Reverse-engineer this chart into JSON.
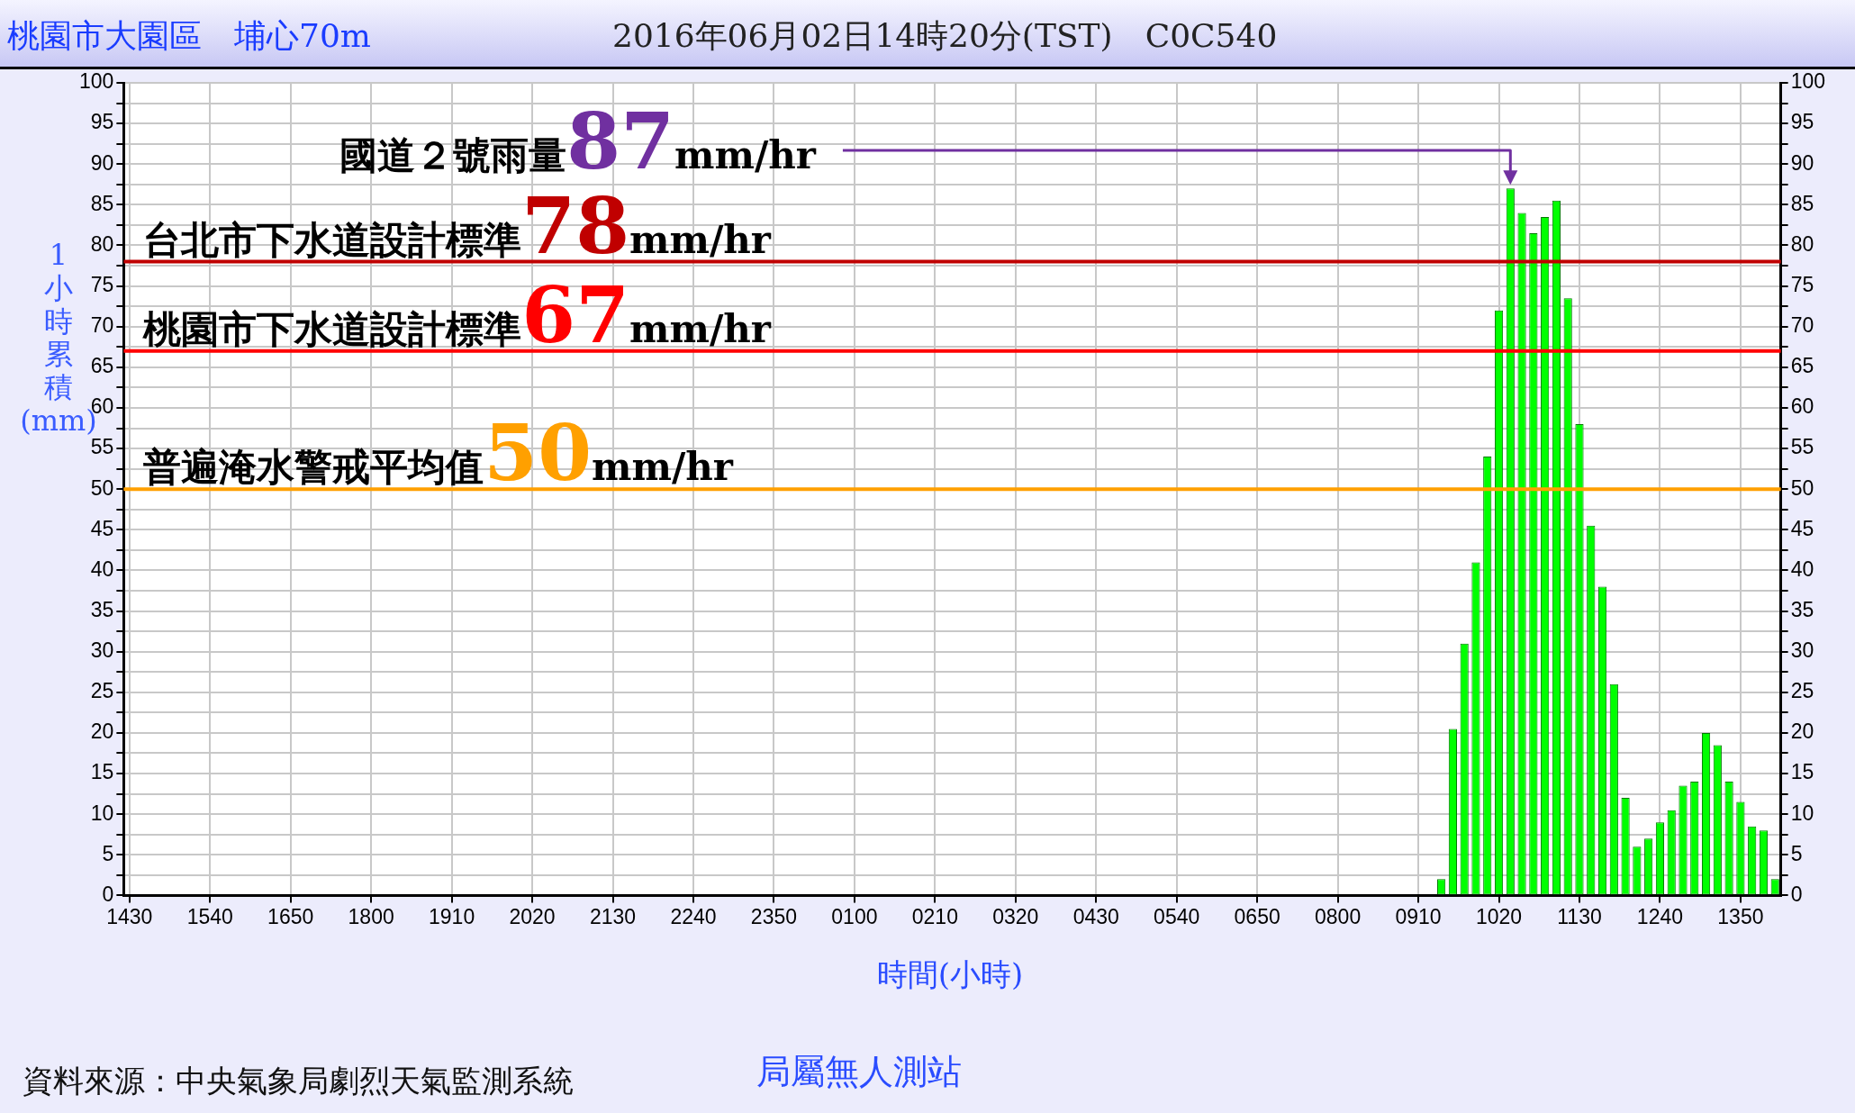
{
  "chart_data": {
    "type": "bar",
    "title": "桃園市大園區　埔心70m",
    "subtitle": "2016年06月02日14時20分(TST)　C0C540",
    "xlabel": "時間(小時)",
    "ylabel": "1小時累積(mm)",
    "categories": [
      "1430",
      null,
      null,
      null,
      null,
      null,
      null,
      "1540",
      null,
      null,
      null,
      null,
      null,
      null,
      "1650",
      null,
      null,
      null,
      null,
      null,
      null,
      "1800",
      null,
      null,
      null,
      null,
      null,
      null,
      "1910",
      null,
      null,
      null,
      null,
      null,
      null,
      "2020",
      null,
      null,
      null,
      null,
      null,
      null,
      "2130",
      null,
      null,
      null,
      null,
      null,
      null,
      "2240",
      null,
      null,
      null,
      null,
      null,
      null,
      "2350",
      null,
      null,
      null,
      null,
      null,
      null,
      "0100",
      null,
      null,
      null,
      null,
      null,
      null,
      "0210",
      null,
      null,
      null,
      null,
      null,
      null,
      "0320",
      null,
      null,
      null,
      null,
      null,
      null,
      "0430",
      null,
      null,
      null,
      null,
      null,
      null,
      "0540",
      null,
      null,
      null,
      null,
      null,
      null,
      "0650",
      null,
      null,
      null,
      null,
      null,
      null,
      "0800",
      null,
      null,
      null,
      null,
      null,
      null,
      "0910",
      null,
      null,
      null,
      null,
      null,
      null,
      "1020",
      null,
      null,
      null,
      null,
      null,
      null,
      "1130",
      null,
      null,
      null,
      null,
      null,
      null,
      "1240",
      null,
      null,
      null,
      null,
      null,
      null,
      "1350",
      null,
      null,
      null
    ],
    "values": [
      0,
      0,
      0,
      0,
      0,
      0,
      0,
      0,
      0,
      0,
      0,
      0,
      0,
      0,
      0,
      0,
      0,
      0,
      0,
      0,
      0,
      0,
      0,
      0,
      0,
      0,
      0,
      0,
      0,
      0,
      0,
      0,
      0,
      0,
      0,
      0,
      0,
      0,
      0,
      0,
      0,
      0,
      0,
      0,
      0,
      0,
      0,
      0,
      0,
      0,
      0,
      0,
      0,
      0,
      0,
      0,
      0,
      0,
      0,
      0,
      0,
      0,
      0,
      0,
      0,
      0,
      0,
      0,
      0,
      0,
      0,
      0,
      0,
      0,
      0,
      0,
      0,
      0,
      0,
      0,
      0,
      0,
      0,
      0,
      0,
      0,
      0,
      0,
      0,
      0,
      0,
      0,
      0,
      0,
      0,
      0,
      0,
      0,
      0,
      0,
      0,
      0,
      0,
      0,
      0,
      0,
      0,
      0,
      0,
      0,
      0,
      0,
      0,
      0,
      2,
      20.5,
      31,
      41,
      54,
      72,
      87,
      84,
      81.5,
      83.5,
      85.5,
      73.5,
      58,
      45.5,
      38,
      26,
      12,
      6,
      7,
      9,
      10.5,
      13.5,
      14,
      20,
      18.5,
      14,
      11.5,
      8.5,
      8,
      2
    ],
    "color": "#00ff00",
    "ylim": [
      0,
      100
    ],
    "yticks": [
      0,
      {
        "value": 2.5,
        "label": null
      },
      5,
      {
        "value": 7.5,
        "label": null
      },
      10,
      {
        "value": 12.5,
        "label": null
      },
      15,
      {
        "value": 17.5,
        "label": null
      },
      20,
      {
        "value": 22.5,
        "label": null
      },
      25,
      {
        "value": 27.5,
        "label": null
      },
      30,
      {
        "value": 32.5,
        "label": null
      },
      35,
      {
        "value": 37.5,
        "label": null
      },
      40,
      {
        "value": 42.5,
        "label": null
      },
      45,
      {
        "value": 47.5,
        "label": null
      },
      50,
      {
        "value": 52.5,
        "label": null
      },
      55,
      {
        "value": 57.5,
        "label": null
      },
      60,
      {
        "value": 62.5,
        "label": null
      },
      65,
      {
        "value": 67.5,
        "label": null
      },
      70,
      {
        "value": 72.5,
        "label": null
      },
      75,
      {
        "value": 77.5,
        "label": null
      },
      80,
      {
        "value": 82.5,
        "label": null
      },
      85,
      {
        "value": 87.5,
        "label": null
      },
      90,
      {
        "value": 92.5,
        "label": null
      },
      95,
      {
        "value": 97.5,
        "label": null
      },
      100
    ],
    "y2lim": [
      0,
      100
    ],
    "y2ticks": [
      0,
      {
        "value": 2.5,
        "label": null
      },
      5,
      {
        "value": 7.5,
        "label": null
      },
      10,
      {
        "value": 12.5,
        "label": null
      },
      15,
      {
        "value": 17.5,
        "label": null
      },
      20,
      {
        "value": 22.5,
        "label": null
      },
      25,
      {
        "value": 27.5,
        "label": null
      },
      30,
      {
        "value": 32.5,
        "label": null
      },
      35,
      {
        "value": 37.5,
        "label": null
      },
      40,
      {
        "value": 42.5,
        "label": null
      },
      45,
      {
        "value": 47.5,
        "label": null
      },
      50,
      {
        "value": 52.5,
        "label": null
      },
      55,
      {
        "value": 57.5,
        "label": null
      },
      60,
      {
        "value": 62.5,
        "label": null
      },
      65,
      {
        "value": 67.5,
        "label": null
      },
      70,
      {
        "value": 72.5,
        "label": null
      },
      75,
      {
        "value": 77.5,
        "label": null
      },
      80,
      {
        "value": 82.5,
        "label": null
      },
      85,
      {
        "value": 87.5,
        "label": null
      },
      90,
      {
        "value": 92.5,
        "label": null
      },
      95,
      {
        "value": 97.5,
        "label": null
      },
      100
    ],
    "ref_lines": [
      {
        "axis": "y",
        "value": 78,
        "label": "台北市下水道設計標準78mm/hr",
        "color": "#c00000"
      },
      {
        "axis": "y",
        "value": 67,
        "label": "桃園市下水道設計標準67mm/hr",
        "color": "#ff0000"
      },
      {
        "axis": "y",
        "value": 50,
        "label": "普遍淹水警戒平均值50mm/hr",
        "color": "#ffa000"
      }
    ],
    "annotations": [
      "國道２號雨量87mm/hr",
      "資料來源：中央氣象局劇烈天氣監測系統",
      "局屬無人測站"
    ],
    "grid": true,
    "legend": false
  }
}
